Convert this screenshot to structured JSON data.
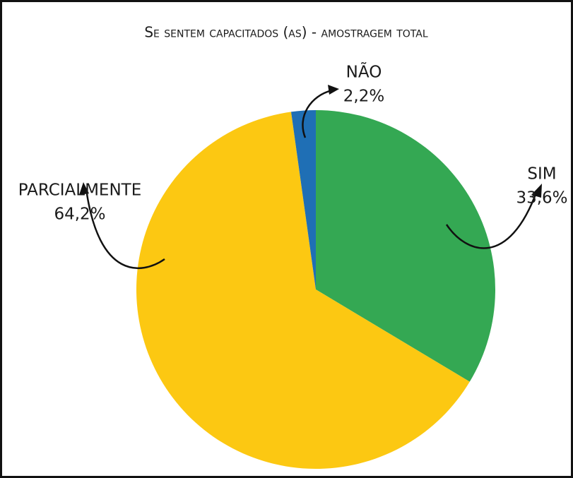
{
  "chart_data": {
    "type": "pie",
    "title": "Se sentem capacitados (as) - amostragem total",
    "categories": [
      "SIM",
      "PARCIALMENTE",
      "NÃO"
    ],
    "values": [
      33.6,
      64.2,
      2.2
    ],
    "value_labels": [
      "33,6%",
      "64,2%",
      "2,2%"
    ],
    "colors": [
      "#34a853",
      "#fcc812",
      "#1f6fb5"
    ]
  }
}
